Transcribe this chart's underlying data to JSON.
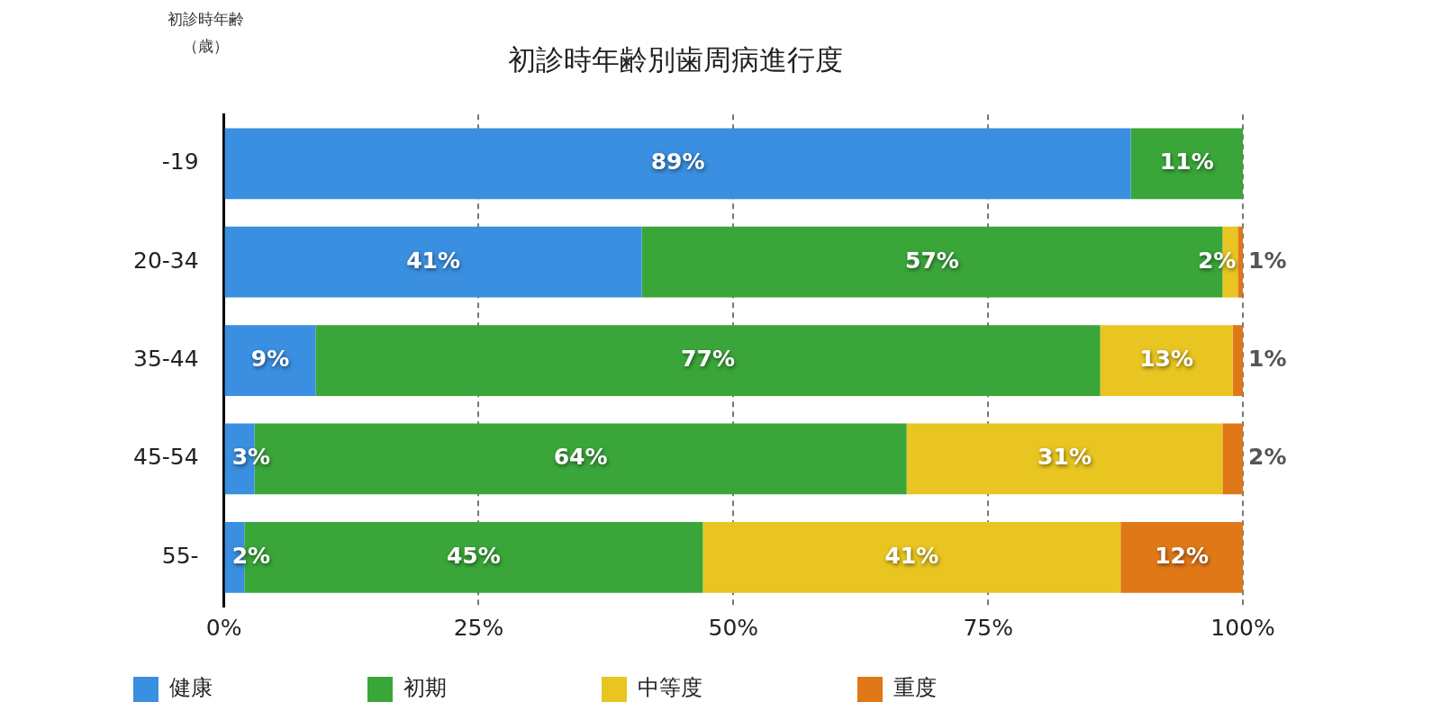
{
  "chart_data": {
    "type": "bar",
    "orientation": "horizontal",
    "stacked": true,
    "title": "初診時年齢別歯周病進行度",
    "ylabel": "初診時年齢（歳）",
    "categories": [
      "-19",
      "20-34",
      "35-44",
      "45-54",
      "55-"
    ],
    "series": [
      {
        "name": "健康",
        "color": "#3a8fe0",
        "values": [
          89,
          41,
          9,
          3,
          2
        ],
        "value_labels": [
          "89%",
          "41%",
          "9%",
          "3%",
          "2%"
        ]
      },
      {
        "name": "初期",
        "color": "#3aa63a",
        "values": [
          11,
          57,
          77,
          64,
          45
        ],
        "value_labels": [
          "11%",
          "57%",
          "77%",
          "64%",
          "45%"
        ]
      },
      {
        "name": "中等度",
        "color": "#e8c520",
        "values": [
          null,
          1.5,
          13,
          31,
          41
        ],
        "value_labels": [
          null,
          "2%",
          "13%",
          "31%",
          "41%"
        ]
      },
      {
        "name": "重度",
        "color": "#e07818",
        "values": [
          null,
          0.5,
          1,
          2,
          12
        ],
        "value_labels": [
          null,
          "1%",
          "1%",
          "2%",
          "12%"
        ]
      }
    ],
    "xlim": [
      0,
      100
    ],
    "xticks": [
      {
        "value": 0,
        "label": "0%"
      },
      {
        "value": 25,
        "label": "25%"
      },
      {
        "value": 50,
        "label": "50%"
      },
      {
        "value": 75,
        "label": "75%"
      },
      {
        "value": 100,
        "label": "100%"
      }
    ],
    "grid": "x",
    "legend": "bottom"
  }
}
